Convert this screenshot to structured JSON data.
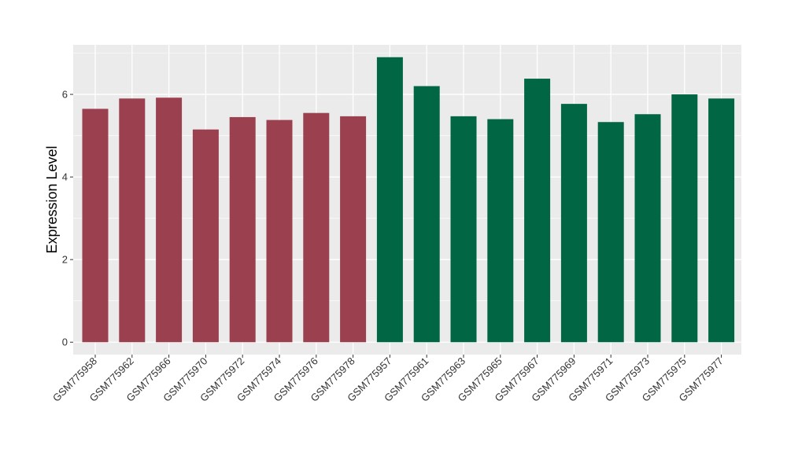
{
  "chart_data": {
    "type": "bar",
    "ylabel": "Expression Level",
    "ylim": [
      -0.3,
      7.2
    ],
    "yticks": [
      0,
      2,
      4,
      6
    ],
    "grid": true,
    "legend": "none",
    "colors": {
      "panel": "#EBEBEB",
      "grid_major": "#FFFFFF",
      "group_1": "#9B404F",
      "group_2": "#006644"
    },
    "categories": [
      "GSM775958",
      "GSM775962",
      "GSM775966",
      "GSM775970",
      "GSM775972",
      "GSM775974",
      "GSM775976",
      "GSM775978",
      "GSM775957",
      "GSM775961",
      "GSM775963",
      "GSM775965",
      "GSM775967",
      "GSM775969",
      "GSM775971",
      "GSM775973",
      "GSM775975",
      "GSM775977"
    ],
    "values": [
      5.65,
      5.9,
      5.92,
      5.15,
      5.45,
      5.38,
      5.55,
      5.47,
      6.9,
      6.2,
      5.47,
      5.4,
      6.38,
      5.77,
      5.33,
      5.52,
      6.0,
      5.9
    ],
    "bar_colors": [
      "#9B404F",
      "#9B404F",
      "#9B404F",
      "#9B404F",
      "#9B404F",
      "#9B404F",
      "#9B404F",
      "#9B404F",
      "#006644",
      "#006644",
      "#006644",
      "#006644",
      "#006644",
      "#006644",
      "#006644",
      "#006644",
      "#006644",
      "#006644"
    ]
  }
}
